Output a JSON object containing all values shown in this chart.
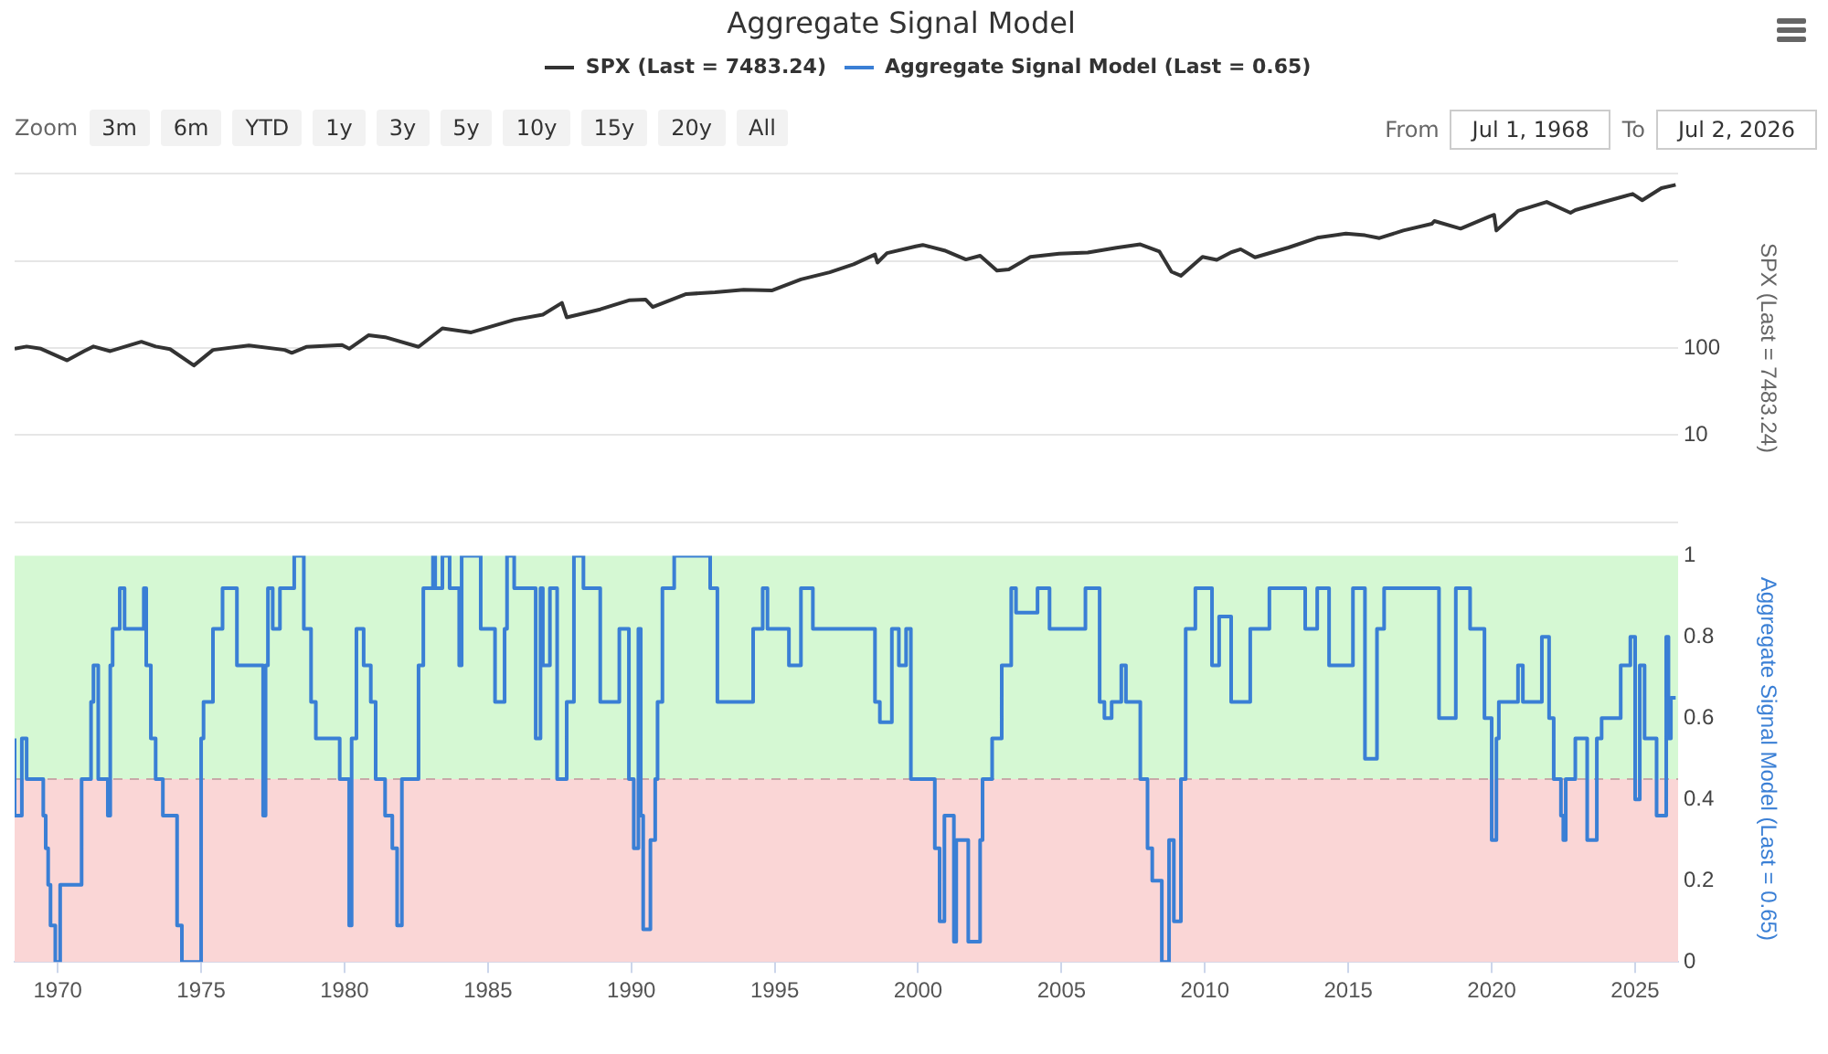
{
  "chart_data": [
    {
      "type": "line",
      "title": "Aggregate Signal Model",
      "ylabel": "SPX (Last = 7483.24)",
      "annotations": [
        "Zoom",
        "3m",
        "6m",
        "YTD",
        "1y",
        "3y",
        "5y",
        "10y",
        "15y",
        "20y",
        "All",
        "From",
        "Jul 1, 1968",
        "To",
        "Jul 2, 2026"
      ],
      "xlim": [
        "1968-07-01",
        "2026-07-02"
      ],
      "tick_labels": "y",
      "ylim": [
        1,
        10000
      ],
      "yticks": [
        {
          "value": 1,
          "label": null
        },
        10,
        100,
        {
          "value": 1000,
          "label": null
        },
        {
          "value": 10000,
          "label": null
        }
      ],
      "log": "y",
      "grid": "y",
      "legend": "top",
      "marker": "none",
      "series": [
        {
          "name": "SPX (Last = 7483.24)",
          "color": "#333333",
          "x": [
            "1968-07",
            "1968-12",
            "1969-06",
            "1970-05",
            "1970-12",
            "1971-04",
            "1971-11",
            "1972-12",
            "1973-06",
            "1973-12",
            "1974-10",
            "1975-06",
            "1976-09",
            "1977-12",
            "1978-03",
            "1978-09",
            "1979-12",
            "1980-03",
            "1980-11",
            "1981-06",
            "1982-08",
            "1983-06",
            "1984-06",
            "1985-12",
            "1986-12",
            "1987-08",
            "1987-10",
            "1988-12",
            "1989-12",
            "1990-07",
            "1990-10",
            "1991-12",
            "1992-12",
            "1993-12",
            "1994-12",
            "1995-12",
            "1996-12",
            "1997-10",
            "1998-07",
            "1998-08",
            "1998-12",
            "1999-12",
            "2000-03",
            "2000-12",
            "2001-09",
            "2002-03",
            "2002-10",
            "2003-03",
            "2003-12",
            "2004-12",
            "2005-12",
            "2006-12",
            "2007-10",
            "2008-06",
            "2008-11",
            "2009-03",
            "2009-12",
            "2010-06",
            "2010-12",
            "2011-04",
            "2011-10",
            "2012-12",
            "2013-12",
            "2014-12",
            "2015-08",
            "2016-02",
            "2016-12",
            "2017-12",
            "2018-01",
            "2018-12",
            "2019-12",
            "2020-02",
            "2020-03",
            "2020-12",
            "2021-12",
            "2022-10",
            "2022-12",
            "2023-12",
            "2024-12",
            "2025-04",
            "2025-12",
            "2026-06"
          ],
          "values": [
            98,
            104,
            98,
            72,
            92,
            104,
            92,
            118,
            104,
            97,
            63,
            95,
            107,
            95,
            88,
            103,
            108,
            98,
            140,
            133,
            103,
            168,
            151,
            211,
            242,
            330,
            225,
            278,
            353,
            360,
            295,
            417,
            436,
            466,
            459,
            615,
            740,
            914,
            1186,
            957,
            1229,
            1469,
            1527,
            1320,
            1040,
            1147,
            776,
            800,
            1111,
            1211,
            1248,
            1418,
            1549,
            1280,
            752,
            676,
            1115,
            1030,
            1257,
            1363,
            1099,
            1426,
            1848,
            2058,
            1972,
            1829,
            2238,
            2673,
            2872,
            2350,
            3230,
            3386,
            2237,
            3756,
            4766,
            3577,
            3839,
            4769,
            5881,
            4982,
            6850,
            7483
          ]
        }
      ]
    },
    {
      "type": "step",
      "ylabel": "Aggregate Signal Model (Last = 0.65)",
      "xlim": [
        "1968-07-01",
        "2026-07-02"
      ],
      "xticks": [
        "1970",
        "1975",
        "1980",
        "1985",
        "1990",
        "1995",
        "2000",
        "2005",
        "2010",
        "2015",
        "2020",
        "2025"
      ],
      "ylim": [
        0,
        1
      ],
      "yticks": [
        0,
        0.2,
        0.4,
        0.6,
        0.8,
        1
      ],
      "legend": "top",
      "marker": "none",
      "bands": [
        {
          "axis": "y",
          "from": 0.45,
          "to": 1,
          "color": "#d5f8d3"
        },
        {
          "axis": "y",
          "from": 0,
          "to": 0.45,
          "color": "#fad6d6"
        }
      ],
      "ref_lines": [
        {
          "axis": "y",
          "value": 0.45,
          "color": "#c8a8a8",
          "line_style": "dashed"
        }
      ],
      "series": [
        {
          "name": "Aggregate Signal Model (Last = 0.65)",
          "color": "#3a7fd5",
          "x": [
            "1968-07",
            "1968-10",
            "1968-12",
            "1969-07",
            "1969-08",
            "1969-09",
            "1969-10",
            "1969-12",
            "1970-02",
            "1970-11",
            "1971-03",
            "1971-04",
            "1971-06",
            "1971-10",
            "1971-11",
            "1971-12",
            "1972-03",
            "1972-05",
            "1973-01",
            "1973-02",
            "1973-04",
            "1973-06",
            "1973-09",
            "1974-03",
            "1974-05",
            "1975-01",
            "1975-02",
            "1975-06",
            "1975-10",
            "1976-04",
            "1977-03",
            "1977-04",
            "1977-05",
            "1977-07",
            "1977-10",
            "1978-04",
            "1978-08",
            "1978-11",
            "1979-01",
            "1979-11",
            "1980-03",
            "1980-04",
            "1980-06",
            "1980-09",
            "1980-12",
            "1981-02",
            "1981-06",
            "1981-09",
            "1981-11",
            "1982-01",
            "1982-08",
            "1982-10",
            "1983-02",
            "1983-03",
            "1983-06",
            "1983-09",
            "1984-01",
            "1984-02",
            "1984-10",
            "1985-04",
            "1985-08",
            "1985-09",
            "1985-12",
            "1986-09",
            "1986-11",
            "1986-12",
            "1987-03",
            "1987-06",
            "1987-10",
            "1988-01",
            "1988-05",
            "1988-12",
            "1989-08",
            "1989-12",
            "1990-02",
            "1990-04",
            "1990-05",
            "1990-06",
            "1990-09",
            "1990-11",
            "1990-12",
            "1991-02",
            "1991-07",
            "1992-10",
            "1993-01",
            "1994-04",
            "1994-08",
            "1994-10",
            "1995-07",
            "1995-12",
            "1996-05",
            "1998-07",
            "1998-09",
            "1999-02",
            "1999-05",
            "1999-08",
            "1999-10",
            "2000-08",
            "2000-10",
            "2000-12",
            "2001-04",
            "2001-05",
            "2001-10",
            "2002-03",
            "2002-04",
            "2002-08",
            "2002-12",
            "2003-04",
            "2003-06",
            "2004-03",
            "2004-08",
            "2005-11",
            "2006-05",
            "2006-07",
            "2006-10",
            "2007-02",
            "2007-04",
            "2007-10",
            "2008-01",
            "2008-03",
            "2008-07",
            "2008-10",
            "2008-12",
            "2009-03",
            "2009-05",
            "2009-09",
            "2010-04",
            "2010-07",
            "2010-12",
            "2011-08",
            "2012-04",
            "2013-07",
            "2013-12",
            "2014-05",
            "2015-03",
            "2015-08",
            "2016-01",
            "2016-04",
            "2018-03",
            "2018-10",
            "2019-04",
            "2019-10",
            "2020-01",
            "2020-03",
            "2020-04",
            "2020-12",
            "2021-02",
            "2021-10",
            "2022-01",
            "2022-03",
            "2022-06",
            "2022-07",
            "2022-08",
            "2022-12",
            "2023-05",
            "2023-09",
            "2023-11",
            "2024-07",
            "2024-11",
            "2025-01",
            "2025-03",
            "2025-05",
            "2025-10",
            "2026-02",
            "2026-03",
            "2026-04",
            "2026-06"
          ],
          "values": [
            0.55,
            0.36,
            0.55,
            0.45,
            0.36,
            0.28,
            0.19,
            0.09,
            0,
            0.19,
            0.45,
            0.64,
            0.73,
            0.45,
            0.36,
            0.73,
            0.82,
            0.92,
            0.82,
            0.92,
            0.73,
            0.55,
            0.45,
            0.36,
            0.09,
            0,
            0.55,
            0.64,
            0.82,
            0.92,
            0.73,
            0.36,
            0.73,
            0.92,
            0.82,
            0.92,
            1,
            0.82,
            0.64,
            0.55,
            0.45,
            0.09,
            0.55,
            0.82,
            0.73,
            0.64,
            0.45,
            0.36,
            0.28,
            0.09,
            0.45,
            0.73,
            0.92,
            1,
            0.92,
            1,
            0.92,
            0.73,
            1,
            0.82,
            0.64,
            0.82,
            1,
            0.92,
            0.55,
            0.92,
            0.73,
            0.92,
            0.45,
            0.64,
            1,
            0.92,
            0.64,
            0.82,
            0.45,
            0.28,
            0.82,
            0.36,
            0.08,
            0.3,
            0.45,
            0.64,
            0.92,
            1,
            0.92,
            0.64,
            0.82,
            0.92,
            0.82,
            0.73,
            0.92,
            0.82,
            0.64,
            0.59,
            0.82,
            0.73,
            0.82,
            0.45,
            0.28,
            0.1,
            0.36,
            0.05,
            0.3,
            0.05,
            0.3,
            0.45,
            0.55,
            0.73,
            0.92,
            0.86,
            0.92,
            0.82,
            0.92,
            0.64,
            0.6,
            0.64,
            0.73,
            0.64,
            0.45,
            0.28,
            0.2,
            0,
            0.3,
            0.1,
            0.45,
            0.82,
            0.92,
            0.73,
            0.85,
            0.64,
            0.82,
            0.92,
            0.82,
            0.92,
            0.73,
            0.92,
            0.5,
            0.82,
            0.92,
            0.6,
            0.92,
            0.82,
            0.6,
            0.3,
            0.55,
            0.64,
            0.73,
            0.64,
            0.8,
            0.6,
            0.45,
            0.36,
            0.3,
            0.45,
            0.55,
            0.3,
            0.55,
            0.6,
            0.73,
            0.8,
            0.4,
            0.73,
            0.55,
            0.36,
            0.8,
            0.55,
            0.65
          ]
        }
      ]
    }
  ]
}
